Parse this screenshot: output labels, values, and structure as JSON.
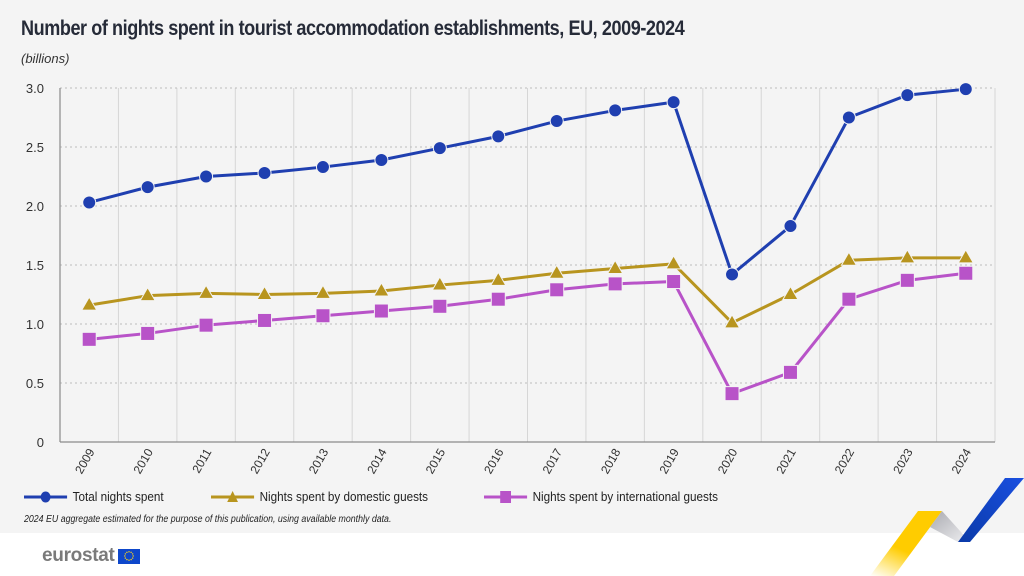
{
  "header": {
    "title": "Number of nights spent in tourist accommodation establishments, EU, 2009-2024",
    "unit": "(billions)"
  },
  "chart_data": {
    "type": "line",
    "title": "Number of nights spent in tourist accommodation establishments, EU, 2009-2024",
    "subtitle": "(billions)",
    "xlabel": "",
    "ylabel": "",
    "categories": [
      "2009",
      "2010",
      "2011",
      "2012",
      "2013",
      "2014",
      "2015",
      "2016",
      "2017",
      "2018",
      "2019",
      "2020",
      "2021",
      "2022",
      "2023",
      "2024"
    ],
    "ylim": [
      0,
      3.0
    ],
    "yticks": [
      0,
      0.5,
      1.0,
      1.5,
      2.0,
      2.5,
      3.0
    ],
    "ytick_labels": [
      "0",
      "0.5",
      "1.0",
      "1.5",
      "2.0",
      "2.5",
      "3.0"
    ],
    "grid": true,
    "legend_position": "bottom-left",
    "series": [
      {
        "name": "Total nights spent",
        "color": "#1f3fb0",
        "marker": "circle",
        "values": [
          2.03,
          2.16,
          2.25,
          2.28,
          2.33,
          2.39,
          2.49,
          2.59,
          2.72,
          2.81,
          2.88,
          1.42,
          1.83,
          2.75,
          2.94,
          2.99
        ]
      },
      {
        "name": "Nights spent by domestic guests",
        "color": "#b8951f",
        "marker": "triangle",
        "values": [
          1.16,
          1.24,
          1.26,
          1.25,
          1.26,
          1.28,
          1.33,
          1.37,
          1.43,
          1.47,
          1.51,
          1.01,
          1.25,
          1.54,
          1.56,
          1.56
        ]
      },
      {
        "name": "Nights spent by international guests",
        "color": "#b853c8",
        "marker": "square",
        "values": [
          0.87,
          0.92,
          0.99,
          1.03,
          1.07,
          1.11,
          1.15,
          1.21,
          1.29,
          1.34,
          1.36,
          0.41,
          0.59,
          1.21,
          1.37,
          1.43
        ]
      }
    ]
  },
  "footnote": "2024 EU aggregate estimated for the purpose of this publication, using available monthly data.",
  "logo": {
    "text": "eurostat"
  }
}
